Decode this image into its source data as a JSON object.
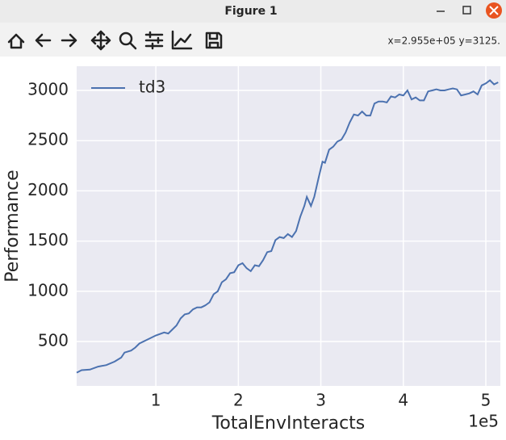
{
  "window": {
    "title": "Figure 1",
    "status": "x=2.955e+05 y=3125."
  },
  "chart_data": {
    "type": "line",
    "xlabel": "TotalEnvInteracts",
    "ylabel": "Performance",
    "x_offset_label": "1e5",
    "x": [
      4000,
      10000,
      20000,
      30000,
      40000,
      50000,
      58000,
      62000,
      70000,
      75000,
      80000,
      90000,
      100000,
      110000,
      115000,
      120000,
      125000,
      130000,
      135000,
      140000,
      145000,
      150000,
      155000,
      160000,
      165000,
      170000,
      175000,
      180000,
      185000,
      190000,
      195000,
      200000,
      205000,
      210000,
      215000,
      220000,
      225000,
      230000,
      235000,
      240000,
      245000,
      250000,
      255000,
      260000,
      265000,
      270000,
      275000,
      280000,
      283000,
      288000,
      292000,
      297000,
      302000,
      305000,
      310000,
      315000,
      320000,
      325000,
      330000,
      335000,
      340000,
      345000,
      350000,
      355000,
      360000,
      365000,
      370000,
      375000,
      380000,
      385000,
      390000,
      395000,
      400000,
      405000,
      410000,
      415000,
      420000,
      425000,
      430000,
      435000,
      440000,
      445000,
      450000,
      455000,
      460000,
      465000,
      470000,
      475000,
      480000,
      485000,
      490000,
      495000,
      500000,
      505000,
      510000,
      515000
    ],
    "series": [
      {
        "name": "td3",
        "color": "#4c72b0",
        "values": [
          190,
          215,
          220,
          250,
          265,
          300,
          340,
          390,
          410,
          440,
          480,
          520,
          560,
          590,
          580,
          620,
          660,
          730,
          770,
          780,
          820,
          840,
          840,
          860,
          890,
          970,
          1000,
          1090,
          1120,
          1180,
          1190,
          1260,
          1280,
          1230,
          1200,
          1260,
          1250,
          1310,
          1390,
          1400,
          1510,
          1540,
          1530,
          1570,
          1540,
          1600,
          1740,
          1850,
          1940,
          1850,
          1940,
          2120,
          2290,
          2280,
          2410,
          2440,
          2490,
          2510,
          2580,
          2680,
          2760,
          2750,
          2790,
          2750,
          2750,
          2870,
          2890,
          2890,
          2880,
          2940,
          2930,
          2960,
          2950,
          3000,
          2910,
          2930,
          2900,
          2900,
          2990,
          3000,
          3010,
          3000,
          3000,
          3010,
          3020,
          3010,
          2950,
          2960,
          2970,
          2990,
          2960,
          3050,
          3070,
          3100,
          3060,
          3080
        ]
      }
    ],
    "xlim": [
      4000,
      517600
    ],
    "ylim": [
      58,
      3241
    ],
    "xticks": [
      {
        "value": 100000,
        "label": "1"
      },
      {
        "value": 200000,
        "label": "2"
      },
      {
        "value": 300000,
        "label": "3"
      },
      {
        "value": 400000,
        "label": "4"
      },
      {
        "value": 500000,
        "label": "5"
      }
    ],
    "yticks": [
      500,
      1000,
      1500,
      2000,
      2500,
      3000
    ],
    "grid": true,
    "legend": "upper left"
  }
}
